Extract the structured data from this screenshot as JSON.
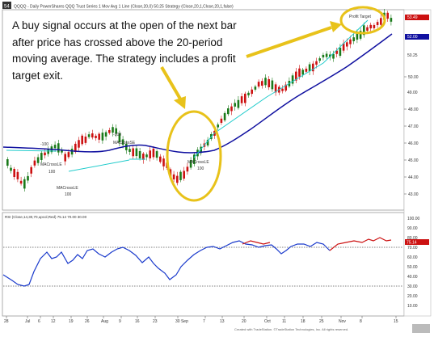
{
  "header": {
    "badge": "54",
    "title": "QQQQ - Daily PowerShares QQQ Trust Series 1  Mov Avg 1 Line (Close,20,0)  50.25  Strategy (Close,20,1,Close,20,1,false)"
  },
  "caption": {
    "lines": [
      "A buy signal occurs at the open of the next bar",
      "after price has crossed above the 20-period",
      "moving average. The strategy includes a profit",
      "target exit."
    ]
  },
  "rsi_header": "RSI (Close,14,30,70,upcol,Red)  75.14  70.00  30.00",
  "footer": "Created with TradeStation. ©TradeStation Technologies, Inc. All rights reserved.",
  "colors": {
    "up_candle": "#1a7a1a",
    "down_candle": "#cc1111",
    "ma": "#1010a0",
    "cross_line": "#22cccc",
    "rsi_normal": "#1a3acc",
    "rsi_overbought": "#cc1111",
    "highlight": "#e8c21a",
    "arrow": "#e8c21a"
  },
  "chart_data": [
    {
      "type": "candlestick",
      "title": "QQQQ - Daily",
      "y_ticks": [
        "50.00",
        "48.00",
        "47.00",
        "46.00",
        "45.00",
        "44.00",
        "43.00"
      ],
      "price_labels": [
        "53.49",
        "52.00",
        "50.25",
        "49.00"
      ],
      "x_ticks": [
        "28",
        "Jul",
        "6",
        "12",
        "19",
        "26",
        "Aug",
        "9",
        "16",
        "23",
        "30 Sep",
        "7",
        "13",
        "20",
        "Oct",
        "11",
        "18",
        "25",
        "Nov",
        "8",
        "15"
      ],
      "annotations": [
        "Profit Target",
        "-100",
        "-100",
        "MACrossSE",
        "MACrossLE",
        "MACrossLE",
        "MACrossLE",
        "100",
        "100",
        "100"
      ],
      "series": [
        {
          "name": "Mov Avg 1 Line (Close,20,0)",
          "values": []
        },
        {
          "name": "Strategy",
          "values": []
        }
      ]
    },
    {
      "type": "line",
      "title": "RSI (Close,14,30,70,upcol,Red)",
      "y_ticks": [
        "100.00",
        "90.00",
        "80.00",
        "70.00",
        "60.00",
        "50.00",
        "40.00",
        "30.00",
        "20.00",
        "10.00"
      ],
      "current_value": "75.14",
      "levels": [
        70,
        30
      ],
      "ylim": [
        0,
        100
      ]
    }
  ]
}
